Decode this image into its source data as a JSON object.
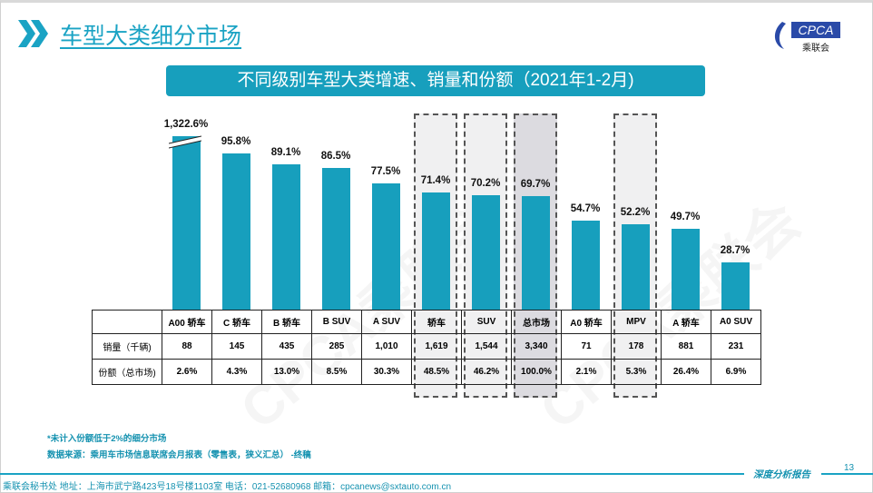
{
  "header": {
    "title": "车型大类细分市场",
    "logo_text": "CPCA",
    "logo_sub": "乘联会"
  },
  "chart_data": {
    "type": "bar",
    "title": "不同级别车型大类增速、销量和份额（2021年1-2月)",
    "categories": [
      "A00 轿车",
      "C 轿车",
      "B 轿车",
      "B SUV",
      "A SUV",
      "轿车",
      "SUV",
      "总市场",
      "A0 轿车",
      "MPV",
      "A 轿车",
      "A0 SUV"
    ],
    "values": [
      1322.6,
      95.8,
      89.1,
      86.5,
      77.5,
      71.4,
      70.2,
      69.7,
      54.7,
      52.2,
      49.7,
      28.7
    ],
    "value_labels": [
      "1,322.6%",
      "95.8%",
      "89.1%",
      "86.5%",
      "77.5%",
      "71.4%",
      "70.2%",
      "69.7%",
      "54.7%",
      "52.2%",
      "49.7%",
      "28.7%"
    ],
    "broken_axis_category": "A00 轿车",
    "highlighted": [
      "轿车",
      "SUV",
      "总市场",
      "MPV"
    ],
    "ylim": [
      0,
      100
    ],
    "bar_color": "#179fbd",
    "table": {
      "row_labels": [
        "销量（千辆)",
        "份额（总市场)"
      ],
      "sales": [
        "88",
        "145",
        "435",
        "285",
        "1,010",
        "1,619",
        "1,544",
        "3,340",
        "71",
        "178",
        "881",
        "231"
      ],
      "share": [
        "2.6%",
        "4.3%",
        "13.0%",
        "8.5%",
        "30.3%",
        "48.5%",
        "46.2%",
        "100.0%",
        "2.1%",
        "5.3%",
        "26.4%",
        "6.9%"
      ]
    }
  },
  "notes": {
    "n1": "*未计入份额低于2%的细分市场",
    "n2": "数据来源：乘用车市场信息联席会月报表（零售表，狭义汇总） -终稿"
  },
  "footer": {
    "text": "乘联会秘书处   地址：上海市武宁路423号18号楼1103室  电话：021-52680968   邮箱：cpcanews@sxtauto.com.cn",
    "report": "深度分析报告",
    "page": "13"
  }
}
